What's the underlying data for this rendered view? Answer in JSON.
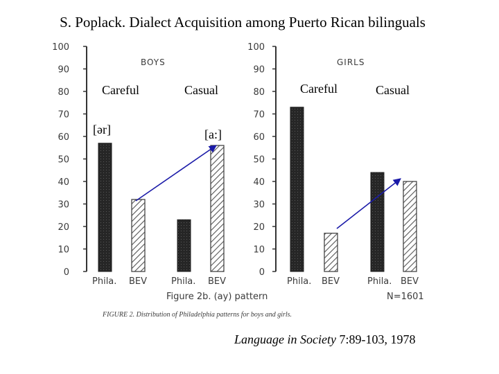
{
  "slide_title": "S. Poplack. Dialect Acquisition among Puerto Rican bilinguals",
  "citation": {
    "journal": "Language in Society",
    "details": " 7:89-103, 1978"
  },
  "colors": {
    "dark_bar": "#262626",
    "hatch": "#555555",
    "arrow": "#1a1aa8",
    "axis": "#333333"
  },
  "chart_data": [
    {
      "type": "bar",
      "title": "BOYS",
      "yticks": [
        0,
        10,
        20,
        30,
        40,
        50,
        60,
        70,
        80,
        90,
        100
      ],
      "ylim": [
        0,
        100
      ],
      "groups": [
        "Careful",
        "Casual"
      ],
      "categories": [
        "Phila.",
        "BEV",
        "Phila.",
        "BEV"
      ],
      "values": [
        57,
        32,
        23,
        56
      ],
      "styles": [
        "solid",
        "hatched",
        "solid",
        "hatched"
      ],
      "annotations": [
        "[ər]",
        "[a:]"
      ]
    },
    {
      "type": "bar",
      "title": "GIRLS",
      "yticks": [
        0,
        10,
        20,
        30,
        40,
        50,
        60,
        70,
        80,
        90,
        100
      ],
      "ylim": [
        0,
        100
      ],
      "groups": [
        "Careful",
        "Casual"
      ],
      "categories": [
        "Phila.",
        "BEV",
        "Phila.",
        "BEV"
      ],
      "values": [
        73,
        17,
        44,
        40
      ],
      "styles": [
        "solid",
        "hatched",
        "solid",
        "hatched"
      ]
    }
  ],
  "figure_subtitle": "Figure 2b. (ay) pattern",
  "n_label": "N=1601",
  "caption": "FIGURE 2. Distribution of Philadelphia patterns for boys and girls."
}
